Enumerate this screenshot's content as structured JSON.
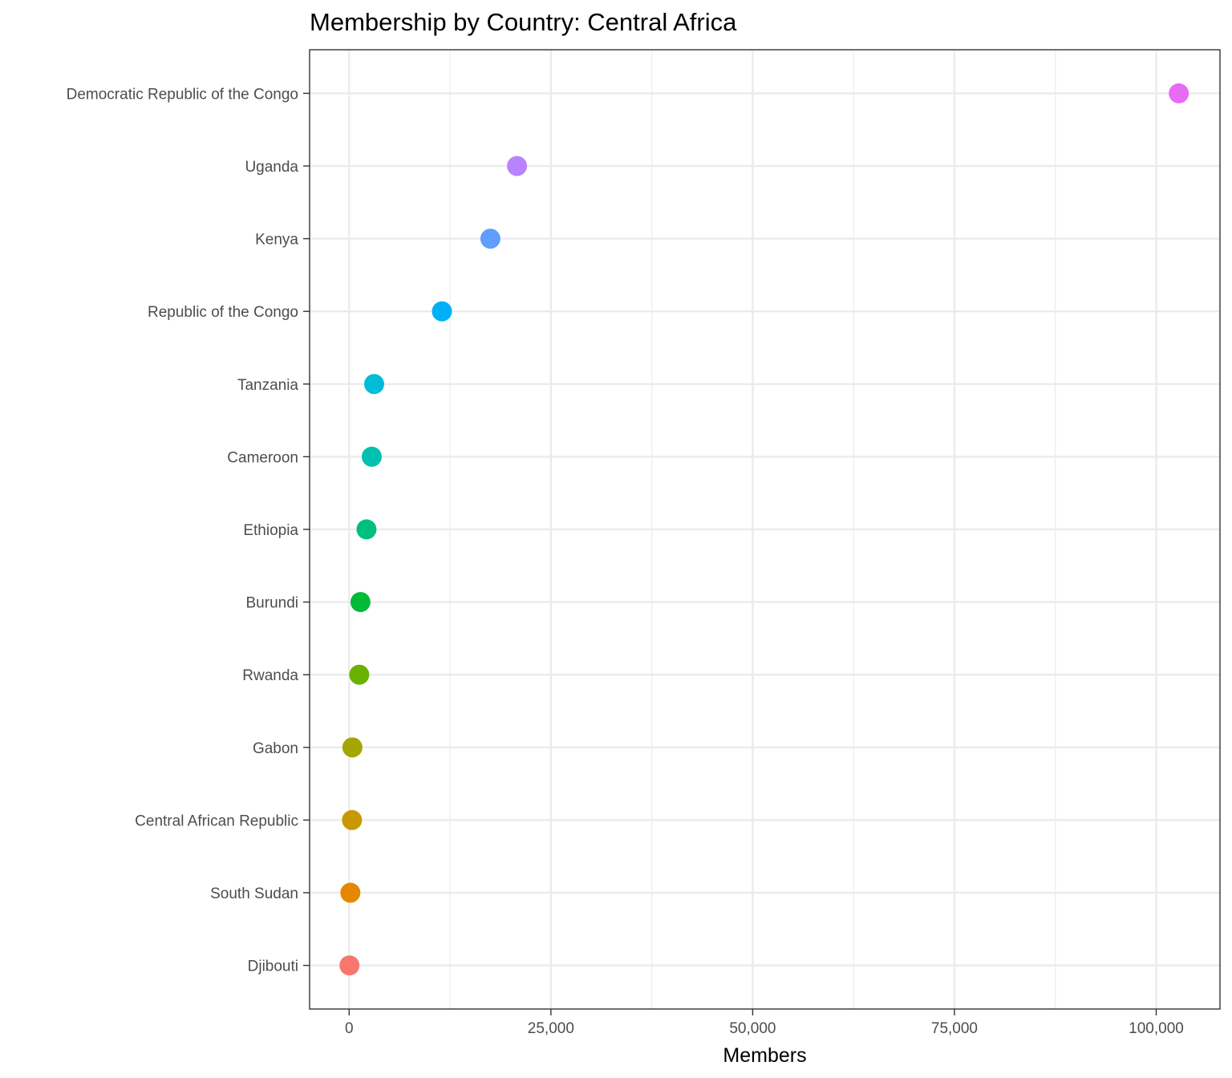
{
  "chart_data": {
    "type": "scatter",
    "title": "Membership by Country: Central Africa",
    "xlabel": "Members",
    "ylabel": "",
    "xlim": [
      -4900,
      107900
    ],
    "x_ticks": [
      {
        "value": 0,
        "label": "0"
      },
      {
        "value": 25000,
        "label": "25,000"
      },
      {
        "value": 50000,
        "label": "50,000"
      },
      {
        "value": 75000,
        "label": "75,000"
      },
      {
        "value": 100000,
        "label": "100,000"
      }
    ],
    "x_minor_ticks": [
      12500,
      37500,
      62500,
      87500
    ],
    "grid": true,
    "legend": "none",
    "points": [
      {
        "category": "Djibouti",
        "value": 40,
        "color": "#F8766D"
      },
      {
        "category": "South Sudan",
        "value": 150,
        "color": "#E58700"
      },
      {
        "category": "Central African Republic",
        "value": 350,
        "color": "#C99800"
      },
      {
        "category": "Gabon",
        "value": 400,
        "color": "#A3A500"
      },
      {
        "category": "Rwanda",
        "value": 1250,
        "color": "#6BB100"
      },
      {
        "category": "Burundi",
        "value": 1400,
        "color": "#00BA38"
      },
      {
        "category": "Ethiopia",
        "value": 2150,
        "color": "#00BF7D"
      },
      {
        "category": "Cameroon",
        "value": 2800,
        "color": "#00C0AF"
      },
      {
        "category": "Tanzania",
        "value": 3100,
        "color": "#00BCD8"
      },
      {
        "category": "Republic of the Congo",
        "value": 11500,
        "color": "#00B0F6"
      },
      {
        "category": "Kenya",
        "value": 17500,
        "color": "#619CFF"
      },
      {
        "category": "Uganda",
        "value": 20800,
        "color": "#B983FF"
      },
      {
        "category": "Democratic Republic of the Congo",
        "value": 102800,
        "color": "#E76BF3"
      }
    ]
  }
}
